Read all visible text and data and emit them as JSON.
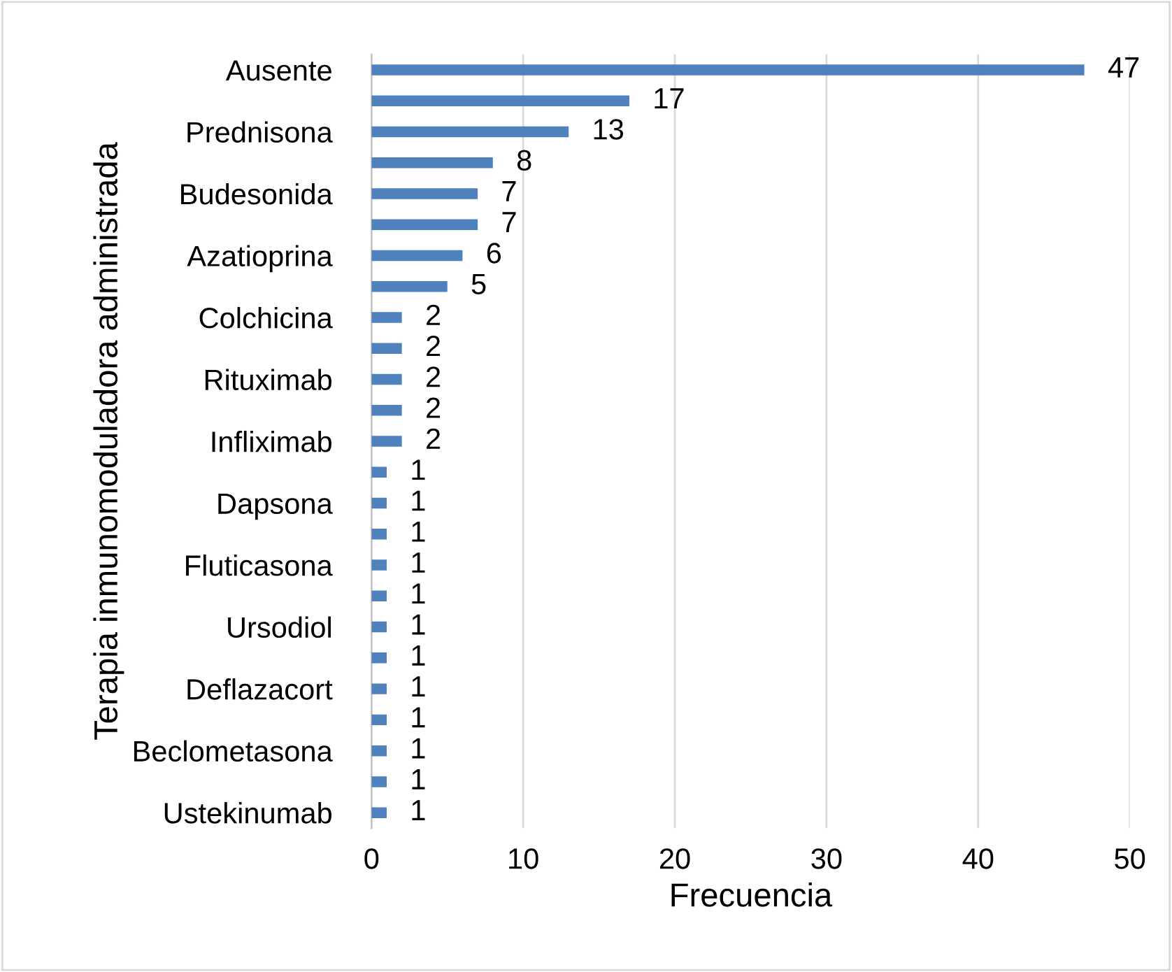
{
  "chart_data": {
    "type": "bar",
    "orientation": "horizontal",
    "xlabel": "Frecuencia",
    "ylabel": "Terapia inmunomoduladora administrada",
    "categories": [
      "Ausente",
      null,
      "Prednisona",
      null,
      "Budesonida",
      null,
      "Azatioprina",
      null,
      "Colchicina",
      null,
      "Rituximab",
      null,
      "Infliximab",
      null,
      "Dapsona",
      null,
      "Fluticasona",
      null,
      "Ursodiol",
      null,
      "Deflazacort",
      null,
      "Beclometasona",
      null,
      "Ustekinumab"
    ],
    "values": [
      47,
      17,
      13,
      8,
      7,
      7,
      6,
      5,
      2,
      2,
      2,
      2,
      2,
      1,
      1,
      1,
      1,
      1,
      1,
      1,
      1,
      1,
      1,
      1,
      1
    ],
    "color": "#4f81bd",
    "xlim": [
      0,
      50
    ],
    "xticks": [
      0,
      10,
      20,
      30,
      40,
      50
    ],
    "grid": "x",
    "data_labels": true,
    "legend": false
  }
}
